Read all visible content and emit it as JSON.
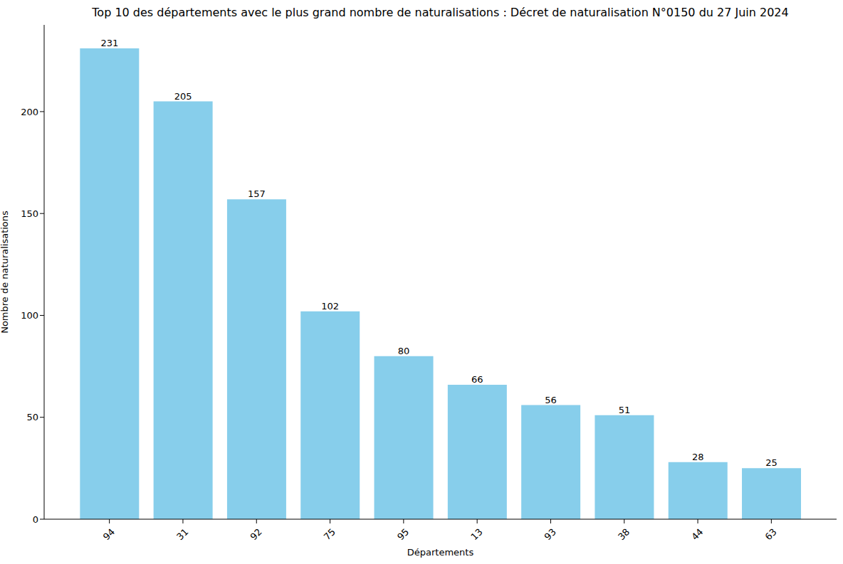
{
  "chart_data": {
    "type": "bar",
    "title": "Top 10 des départements avec le plus grand nombre de naturalisations : Décret de naturalisation N°0150 du 27 Juin 2024",
    "x_label": "Départements",
    "y_label": "Nombre de naturalisations",
    "categories": [
      "94",
      "31",
      "92",
      "75",
      "95",
      "13",
      "93",
      "38",
      "44",
      "63"
    ],
    "values": [
      231,
      205,
      157,
      102,
      80,
      66,
      56,
      51,
      28,
      25
    ],
    "color": "#87ceeb",
    "ylim": [
      0,
      242.55
    ],
    "yticks": [
      0,
      50,
      100,
      150,
      200
    ],
    "grid": false,
    "data_labels": true
  }
}
